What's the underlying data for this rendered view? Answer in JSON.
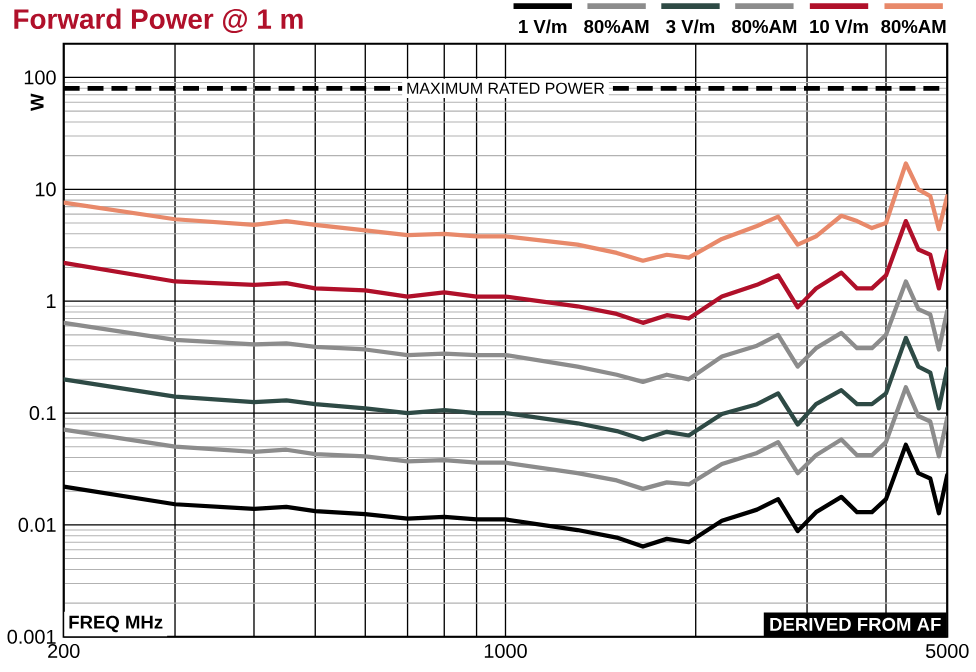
{
  "chart_data": {
    "type": "line",
    "title": "Forward Power @ 1 m",
    "xlabel": "FREQ MHz",
    "ylabel": "W",
    "annotations": [
      "DERIVED FROM AF"
    ],
    "log": "xy",
    "grid": true,
    "legend": "top right",
    "xlim": [
      200,
      5000
    ],
    "ylim": [
      0.001,
      200
    ],
    "xticks": [
      200,
      {
        "value": 300,
        "label": null
      },
      {
        "value": 400,
        "label": null
      },
      {
        "value": 500,
        "label": null
      },
      {
        "value": 600,
        "label": null
      },
      {
        "value": 700,
        "label": null
      },
      {
        "value": 800,
        "label": null
      },
      {
        "value": 900,
        "label": null
      },
      1000,
      {
        "value": 2000,
        "label": null
      },
      {
        "value": 3000,
        "label": null
      },
      {
        "value": 4000,
        "label": null
      },
      5000
    ],
    "yticks": [
      0.001,
      0.01,
      0.1,
      1,
      10,
      100
    ],
    "ref_lines": [
      {
        "axis": "y",
        "value": 80,
        "label": "MAXIMUM RATED POWER",
        "line_style": "dashed",
        "color": "#000000"
      }
    ],
    "x": [
      200,
      300,
      400,
      450,
      500,
      600,
      700,
      800,
      900,
      1000,
      1300,
      1500,
      1650,
      1800,
      1950,
      2200,
      2500,
      2700,
      2900,
      3100,
      3400,
      3600,
      3800,
      4000,
      4300,
      4500,
      4700,
      4850,
      5000
    ],
    "series": [
      {
        "name": "1 V/m",
        "color": "#000000",
        "values": [
          0.022,
          0.0153,
          0.0139,
          0.0145,
          0.0133,
          0.0125,
          0.0114,
          0.0118,
          0.0112,
          0.0112,
          0.009,
          0.0077,
          0.0064,
          0.0075,
          0.007,
          0.0109,
          0.0137,
          0.017,
          0.0088,
          0.013,
          0.0178,
          0.013,
          0.013,
          0.017,
          0.052,
          0.029,
          0.026,
          0.0127,
          0.028
        ]
      },
      {
        "name": "80%AM",
        "color": "#8c8c8c",
        "values": [
          0.071,
          0.05,
          0.045,
          0.047,
          0.043,
          0.041,
          0.037,
          0.038,
          0.036,
          0.036,
          0.029,
          0.025,
          0.021,
          0.024,
          0.023,
          0.035,
          0.044,
          0.055,
          0.029,
          0.042,
          0.058,
          0.042,
          0.042,
          0.055,
          0.17,
          0.094,
          0.084,
          0.041,
          0.091
        ]
      },
      {
        "name": "3 V/m",
        "color": "#2e4a45",
        "values": [
          0.2,
          0.14,
          0.125,
          0.13,
          0.12,
          0.11,
          0.1,
          0.106,
          0.1,
          0.1,
          0.081,
          0.069,
          0.058,
          0.068,
          0.063,
          0.098,
          0.12,
          0.15,
          0.079,
          0.12,
          0.16,
          0.12,
          0.12,
          0.15,
          0.47,
          0.26,
          0.23,
          0.11,
          0.25
        ]
      },
      {
        "name": "80%AM",
        "color": "#8c8c8c",
        "values": [
          0.64,
          0.45,
          0.41,
          0.42,
          0.39,
          0.37,
          0.33,
          0.34,
          0.33,
          0.33,
          0.26,
          0.22,
          0.19,
          0.22,
          0.2,
          0.32,
          0.4,
          0.5,
          0.26,
          0.38,
          0.52,
          0.38,
          0.38,
          0.5,
          1.5,
          0.85,
          0.76,
          0.37,
          0.82
        ]
      },
      {
        "name": "10 V/m",
        "color": "#b0102a",
        "values": [
          2.2,
          1.5,
          1.4,
          1.45,
          1.3,
          1.25,
          1.1,
          1.2,
          1.1,
          1.1,
          0.9,
          0.77,
          0.64,
          0.75,
          0.7,
          1.1,
          1.4,
          1.7,
          0.88,
          1.3,
          1.8,
          1.3,
          1.3,
          1.7,
          5.2,
          2.9,
          2.6,
          1.3,
          2.8
        ]
      },
      {
        "name": "80%AM",
        "color": "#e8896a",
        "values": [
          7.6,
          5.4,
          4.8,
          5.2,
          4.8,
          4.3,
          3.9,
          4.0,
          3.8,
          3.8,
          3.2,
          2.7,
          2.3,
          2.6,
          2.45,
          3.6,
          4.7,
          5.7,
          3.2,
          3.8,
          5.8,
          5.2,
          4.5,
          5.0,
          17,
          10,
          8.7,
          4.4,
          8.7
        ]
      }
    ]
  }
}
